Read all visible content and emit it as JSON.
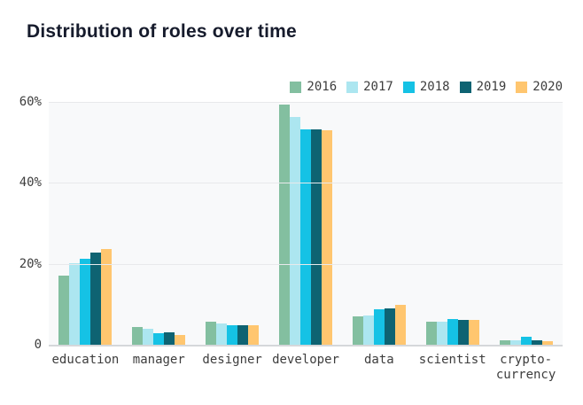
{
  "header": {
    "title": "Distribution of roles over time"
  },
  "colors": {
    "title": "#161B2C",
    "axis_text": "#3D3D3D",
    "plot_background": "#F8F9FA",
    "gridline": "#E8E9EB",
    "baseline": "#D5D7DA"
  },
  "chart_data": {
    "type": "bar",
    "title": "Distribution of roles over time",
    "categories": [
      "education",
      "manager",
      "designer",
      "developer",
      "data",
      "scientist",
      "crypto-currency"
    ],
    "series": [
      {
        "name": "2016",
        "color": "#83BFA0",
        "values": [
          17.0,
          4.4,
          5.6,
          59.3,
          7.0,
          5.7,
          1.2
        ]
      },
      {
        "name": "2017",
        "color": "#ACE6F0",
        "values": [
          20.2,
          4.0,
          5.3,
          56.2,
          7.2,
          5.8,
          1.2
        ]
      },
      {
        "name": "2018",
        "color": "#15C2E5",
        "values": [
          21.3,
          2.9,
          4.8,
          53.3,
          8.8,
          6.3,
          1.9
        ]
      },
      {
        "name": "2019",
        "color": "#0E6372",
        "values": [
          22.8,
          3.0,
          4.8,
          53.3,
          9.0,
          6.1,
          1.1
        ]
      },
      {
        "name": "2020",
        "color": "#FFC66F",
        "values": [
          23.6,
          2.5,
          4.8,
          53.0,
          9.8,
          6.1,
          0.8
        ]
      }
    ],
    "xlabel": "",
    "ylabel": "",
    "ylim": [
      0,
      60
    ],
    "yticks": [
      {
        "label": "0",
        "value": 0
      },
      {
        "label": "20%",
        "value": 20
      },
      {
        "label": "40%",
        "value": 40
      },
      {
        "label": "60%",
        "value": 60
      }
    ],
    "grid": true,
    "legend_position": "top-right"
  }
}
